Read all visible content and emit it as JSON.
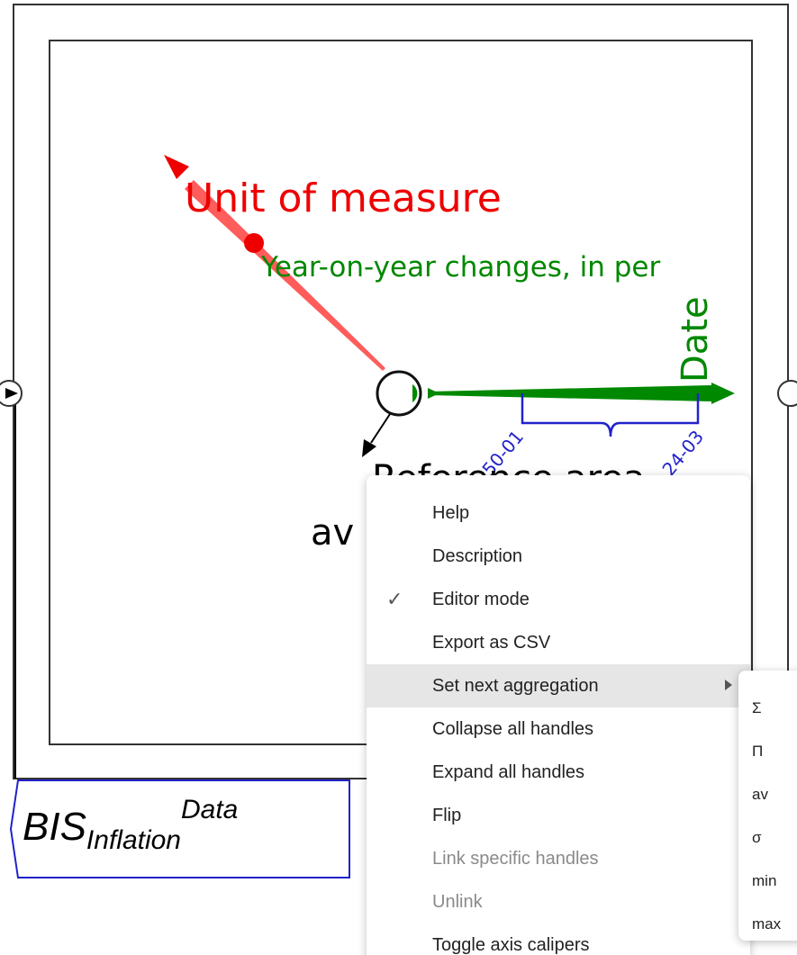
{
  "diagram": {
    "axes": {
      "unit": "Unit of measure",
      "unit_value": "Year-on-year changes, in per",
      "date": "Date",
      "date_start": "50-01",
      "date_end": "24-03",
      "reference": "Reference area",
      "aggregation": "av"
    },
    "dataset": {
      "base": "BIS",
      "sub": "Inflation",
      "sup": "Data"
    }
  },
  "context_menu": {
    "items": [
      "Help",
      "Description",
      "Editor mode",
      "Export as CSV",
      "Set next aggregation",
      "Collapse all handles",
      "Expand all handles",
      "Flip",
      "Link specific handles",
      "Unlink",
      "Toggle axis calipers"
    ],
    "submenu": [
      "Σ",
      "Π",
      "av",
      "σ",
      "min",
      "max"
    ]
  }
}
